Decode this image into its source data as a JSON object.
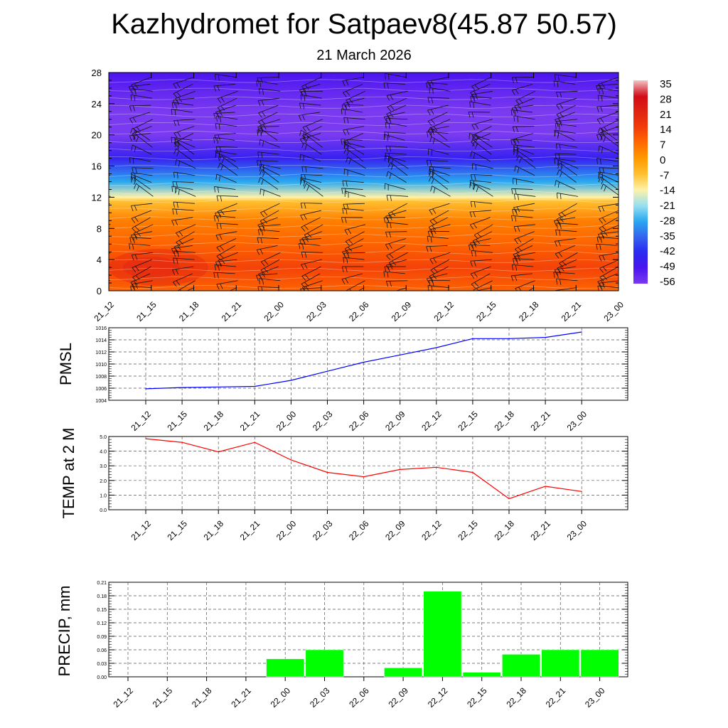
{
  "title": "Kazhydromet for Satpaev8(45.87 50.57)",
  "subtitle": "21 March 2026",
  "times": [
    "21_12",
    "21_15",
    "21_18",
    "21_21",
    "22_00",
    "22_03",
    "22_06",
    "22_09",
    "22_12",
    "22_15",
    "22_18",
    "22_21",
    "23_00"
  ],
  "chart_data": [
    {
      "type": "heatmap",
      "title": "",
      "xlabel": "",
      "ylabel": "",
      "x": [
        "21_12",
        "21_15",
        "21_18",
        "21_21",
        "22_00",
        "22_03",
        "22_06",
        "22_09",
        "22_12",
        "22_15",
        "22_18",
        "22_21",
        "23_00"
      ],
      "ylim": [
        0,
        28
      ],
      "yticks": [
        0,
        4,
        8,
        12,
        16,
        20,
        24,
        28
      ],
      "profile": [
        {
          "level": 0,
          "value": 8
        },
        {
          "level": 3,
          "value": 13
        },
        {
          "level": 6,
          "value": 8
        },
        {
          "level": 9,
          "value": 4
        },
        {
          "level": 11.5,
          "value": -7
        },
        {
          "level": 12,
          "value": -14
        },
        {
          "level": 14,
          "value": -28
        },
        {
          "level": 17,
          "value": -45
        },
        {
          "level": 20,
          "value": -56
        },
        {
          "level": 23,
          "value": -56
        },
        {
          "level": 26,
          "value": -52
        },
        {
          "level": 28,
          "value": -49
        }
      ],
      "colorbar": {
        "labels": [
          "35",
          "28",
          "21",
          "14",
          "7",
          "0",
          "-7",
          "-14",
          "-21",
          "-28",
          "-35",
          "-42",
          "-49",
          "-56"
        ],
        "colors": [
          "#f2c4c4",
          "#d20a18",
          "#e02412",
          "#f23c0a",
          "#ff6a00",
          "#ff9a00",
          "#ffc030",
          "#fff2a8",
          "#9ae0f2",
          "#28a8f0",
          "#3464f0",
          "#2a2af0",
          "#4a14f0",
          "#7a3af0"
        ]
      },
      "wind_barbs": "shown at every time step and ~0.9-unit height interval"
    },
    {
      "type": "line",
      "ylabel": "PMSL",
      "x": [
        "21_12",
        "21_15",
        "21_18",
        "21_21",
        "22_00",
        "22_03",
        "22_06",
        "22_09",
        "22_12",
        "22_15",
        "22_18",
        "22_21",
        "23_00"
      ],
      "series": [
        {
          "values": [
            1005.9,
            1006.1,
            1006.2,
            1006.3,
            1007.3,
            1008.8,
            1010.3,
            1011.5,
            1012.7,
            1014.2,
            1014.2,
            1014.4,
            1015.3
          ]
        }
      ],
      "ylim": [
        1004,
        1016
      ],
      "yticks": [
        1004,
        1006,
        1008,
        1010,
        1012,
        1014,
        1016
      ],
      "color": "#0000ff",
      "grid": true
    },
    {
      "type": "line",
      "ylabel": "TEMP at 2 M",
      "x": [
        "21_12",
        "21_15",
        "21_18",
        "21_21",
        "22_00",
        "22_03",
        "22_06",
        "22_09",
        "22_12",
        "22_15",
        "22_18",
        "22_21",
        "23_00"
      ],
      "series": [
        {
          "values": [
            4.85,
            4.6,
            3.95,
            4.6,
            3.4,
            2.55,
            2.25,
            2.75,
            2.9,
            2.55,
            0.75,
            1.6,
            1.25
          ]
        }
      ],
      "ylim": [
        0,
        5
      ],
      "yticks": [
        "0.0",
        "1.0",
        "2.0",
        "3.0",
        "4.0",
        "5.0"
      ],
      "color": "#ff0000",
      "grid": true
    },
    {
      "type": "bar",
      "ylabel": "PRECIP, mm",
      "categories": [
        "21_12",
        "21_15",
        "21_18",
        "21_21",
        "22_00",
        "22_03",
        "22_06",
        "22_09",
        "22_12",
        "22_15",
        "22_18",
        "22_21",
        "23_00"
      ],
      "values": [
        0,
        0,
        0,
        0,
        0.04,
        0.06,
        0,
        0.02,
        0.19,
        0.01,
        0.05,
        0.06,
        0.06
      ],
      "ylim": [
        0,
        0.21
      ],
      "yticks": [
        "0.00",
        "0.03",
        "0.06",
        "0.09",
        "0.12",
        "0.15",
        "0.18",
        "0.21"
      ],
      "color": "#00ff00",
      "grid": true
    }
  ]
}
